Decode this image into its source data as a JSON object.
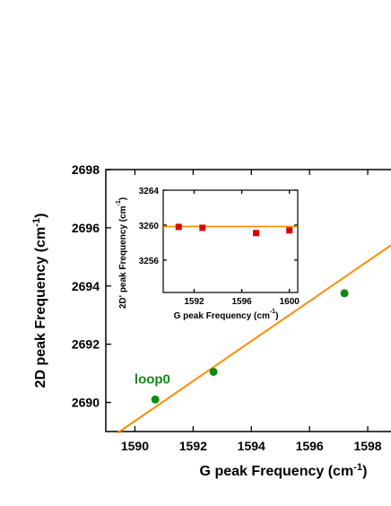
{
  "colors": {
    "fit_line": "#FF8C00",
    "main_marker": "#118811",
    "inset_marker": "#DD0000",
    "annotation": "#118811"
  },
  "chart_data": [
    {
      "type": "scatter",
      "title": "",
      "xlabel": "G peak Frequency (cm",
      "xlabel_sup": "-1",
      "xlabel_end": ")",
      "ylabel": "2D peak Frequency (cm",
      "ylabel_sup": "-1",
      "ylabel_end": ")",
      "xlim": [
        1589,
        1598.8
      ],
      "ylim": [
        2689,
        2698
      ],
      "xticks": [
        1590,
        1592,
        1594,
        1596,
        1598
      ],
      "yticks": [
        2690,
        2692,
        2694,
        2696,
        2698
      ],
      "xtick_labels": [
        "1590",
        "1592",
        "1594",
        "1596",
        "1598"
      ],
      "ytick_labels": [
        "2690",
        "2692",
        "2694",
        "2696",
        "2698"
      ],
      "points": [
        {
          "x": 1590.7,
          "y": 2690.1
        },
        {
          "x": 1592.7,
          "y": 2691.05
        },
        {
          "x": 1597.2,
          "y": 2693.75
        }
      ],
      "fit_line": [
        {
          "x": 1589.4,
          "y": 2688.95
        },
        {
          "x": 1598.8,
          "y": 2695.4
        }
      ],
      "annotation": {
        "text": "loop0",
        "x": 1590.6,
        "y": 2690.5
      }
    },
    {
      "type": "scatter",
      "title": "",
      "xlabel": "G peak Frequency (cm",
      "xlabel_sup": "-1",
      "xlabel_end": ")",
      "ylabel": "2D' peak Frequency (cm",
      "ylabel_sup": "-1",
      "ylabel_end": ")",
      "xlim": [
        1589.4,
        1600.7
      ],
      "ylim": [
        3252.3,
        3264
      ],
      "xticks": [
        1592,
        1596,
        1600
      ],
      "yticks": [
        3256,
        3260,
        3264
      ],
      "xtick_labels": [
        "1592",
        "1596",
        "1600"
      ],
      "ytick_labels": [
        "3256",
        "3260",
        "3264"
      ],
      "points": [
        {
          "x": 1590.7,
          "y": 3259.8
        },
        {
          "x": 1592.7,
          "y": 3259.7
        },
        {
          "x": 1597.2,
          "y": 3259.1
        },
        {
          "x": 1600.0,
          "y": 3259.4
        }
      ],
      "fit_line": [
        {
          "x": 1589.4,
          "y": 3259.85
        },
        {
          "x": 1600.7,
          "y": 3259.85
        }
      ]
    }
  ]
}
